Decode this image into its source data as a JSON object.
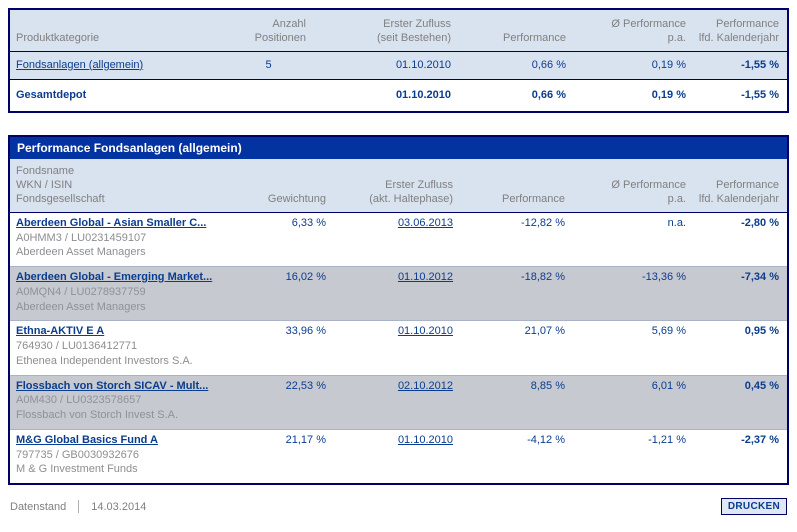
{
  "summary": {
    "headers": {
      "produktkategorie": "Produktkategorie",
      "anzahl_line1": "Anzahl",
      "anzahl_line2": "Positionen",
      "zufluss_line1": "Erster Zufluss",
      "zufluss_line2": "(seit Bestehen)",
      "performance": "Performance",
      "perf_pa_line1": "Ø Performance",
      "perf_pa_line2": "p.a.",
      "perf_jahr_line1": "Performance",
      "perf_jahr_line2": "lfd. Kalenderjahr"
    },
    "rows": [
      {
        "kategorie": "Fondsanlagen (allgemein)",
        "anzahl": "5",
        "zufluss": "01.10.2010",
        "performance": "0,66 %",
        "perf_pa": "0,19 %",
        "perf_jahr": "-1,55 %"
      },
      {
        "kategorie": "Gesamtdepot",
        "anzahl": "",
        "zufluss": "01.10.2010",
        "performance": "0,66 %",
        "perf_pa": "0,19 %",
        "perf_jahr": "-1,55 %"
      }
    ]
  },
  "detail": {
    "title": "Performance Fondsanlagen (allgemein)",
    "headers": {
      "name_line1": "Fondsname",
      "name_line2": "WKN / ISIN",
      "name_line3": "Fondsgesellschaft",
      "gewichtung": "Gewichtung",
      "zufluss_line1": "Erster Zufluss",
      "zufluss_line2": "(akt. Haltephase)",
      "performance": "Performance",
      "perf_pa_line1": "Ø Performance",
      "perf_pa_line2": "p.a.",
      "perf_jahr_line1": "Performance",
      "perf_jahr_line2": "lfd. Kalenderjahr"
    },
    "rows": [
      {
        "name": "Aberdeen Global - Asian Smaller C...",
        "wkn_isin": "A0HMM3 /  LU0231459107",
        "gesellschaft": "Aberdeen Asset Managers",
        "gewichtung": "6,33 %",
        "zufluss": "03.06.2013",
        "performance": "-12,82 %",
        "perf_pa": "n.a.",
        "perf_jahr": "-2,80 %"
      },
      {
        "name": "Aberdeen Global - Emerging Market...",
        "wkn_isin": "A0MQN4 /  LU0278937759",
        "gesellschaft": "Aberdeen Asset Managers",
        "gewichtung": "16,02 %",
        "zufluss": "01.10.2012",
        "performance": "-18,82 %",
        "perf_pa": "-13,36 %",
        "perf_jahr": "-7,34 %"
      },
      {
        "name": "Ethna-AKTIV E A",
        "wkn_isin": "764930 /  LU0136412771",
        "gesellschaft": "Ethenea Independent Investors S.A.",
        "gewichtung": "33,96 %",
        "zufluss": "01.10.2010",
        "performance": "21,07 %",
        "perf_pa": "5,69 %",
        "perf_jahr": "0,95 %"
      },
      {
        "name": "Flossbach von Storch SICAV - Mult...",
        "wkn_isin": "A0M430 /  LU0323578657",
        "gesellschaft": "Flossbach von Storch Invest S.A.",
        "gewichtung": "22,53 %",
        "zufluss": "02.10.2012",
        "performance": "8,85 %",
        "perf_pa": "6,01 %",
        "perf_jahr": "0,45 %"
      },
      {
        "name": "M&G Global Basics Fund A",
        "wkn_isin": "797735 /  GB0030932676",
        "gesellschaft": "M & G Investment Funds",
        "gewichtung": "21,17 %",
        "zufluss": "01.10.2010",
        "performance": "-4,12 %",
        "perf_pa": "-1,21 %",
        "perf_jahr": "-2,37 %"
      }
    ]
  },
  "statusbar": {
    "datenstand_label": "Datenstand",
    "datenstand_value": "14.03.2014",
    "print_button": "DRUCKEN"
  },
  "colors": {
    "border_navy": "#000066",
    "title_bar": "#0333a0",
    "panel_blue": "#d9e2ef",
    "row_gray": "#c6c9cf",
    "text_navy": "#0a3d8f",
    "text_gray": "#808080"
  }
}
